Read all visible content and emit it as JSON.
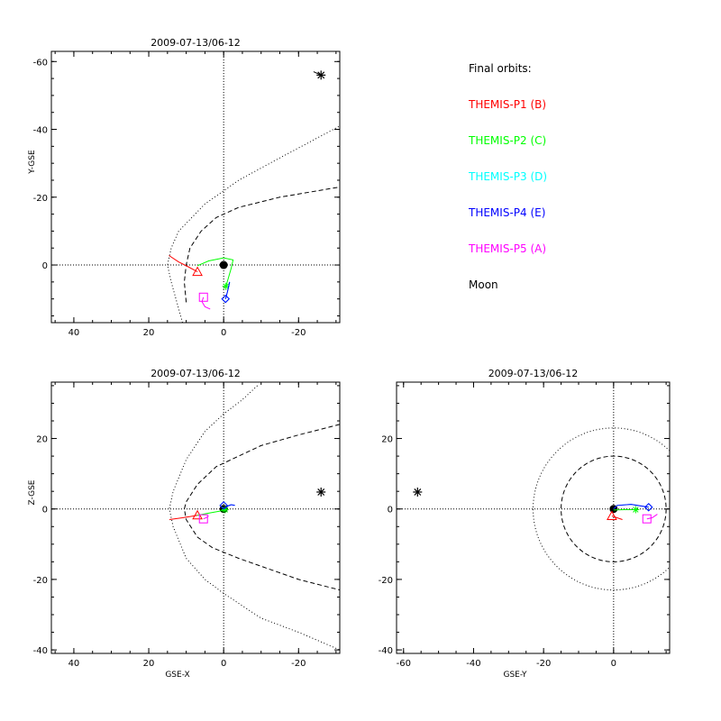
{
  "chart_data": [
    {
      "type": "line",
      "title": "2009-07-13/06-12",
      "xlabel": "",
      "ylabel": "Y-GSE",
      "xlim": [
        46,
        -31
      ],
      "ylim": [
        17,
        -63
      ],
      "xticks": [
        40,
        20,
        0,
        -20
      ],
      "yticks": [
        -60,
        -40,
        -20,
        0
      ],
      "crosshair": [
        0,
        0
      ],
      "outer_boundary": {
        "style": "dotted",
        "points": [
          [
            11,
            17
          ],
          [
            14,
            5
          ],
          [
            15,
            0
          ],
          [
            14,
            -5
          ],
          [
            12,
            -10
          ],
          [
            5,
            -18
          ],
          [
            -4,
            -25
          ],
          [
            -14,
            -31
          ],
          [
            -31,
            -41
          ]
        ]
      },
      "inner_boundary": {
        "style": "dashed",
        "points": [
          [
            10,
            11
          ],
          [
            10.5,
            5
          ],
          [
            10,
            0
          ],
          [
            9,
            -5
          ],
          [
            6,
            -10
          ],
          [
            2,
            -14
          ],
          [
            -4,
            -17
          ],
          [
            -15,
            -20
          ],
          [
            -31,
            -23
          ]
        ]
      },
      "earth": [
        0,
        0
      ],
      "moon": [
        -26,
        -56
      ],
      "moon_trail": [
        [
          -24,
          -57
        ],
        [
          -26,
          -56
        ]
      ],
      "series": [
        {
          "name": "THEMIS-P1 (B)",
          "color": "#ff0000",
          "marker": "triangle",
          "points": [
            [
              14.6,
              -2.8
            ],
            [
              12,
              -0.9
            ],
            [
              9.7,
              0.4
            ],
            [
              7,
              2
            ]
          ],
          "pos": [
            7,
            2
          ]
        },
        {
          "name": "THEMIS-P2 (C)",
          "color": "#00ff00",
          "marker": "asterisk",
          "points": [
            [
              7,
              0.2
            ],
            [
              4,
              -1.2
            ],
            [
              0,
              -2.1
            ],
            [
              -2.5,
              -1.5
            ],
            [
              -2,
              1
            ],
            [
              -1.2,
              4
            ],
            [
              -0.6,
              6.3
            ]
          ],
          "pos": [
            -0.6,
            6.3
          ]
        },
        {
          "name": "THEMIS-P3 (D)",
          "color": "#00ffff",
          "marker": "diamond",
          "points": [
            [
              -1.6,
              5
            ],
            [
              -1,
              8
            ],
            [
              -0.5,
              10
            ]
          ],
          "pos": [
            -0.5,
            10
          ]
        },
        {
          "name": "THEMIS-P4 (E)",
          "color": "#0000ff",
          "marker": "diamond",
          "points": [
            [
              -1.6,
              5
            ],
            [
              -1,
              8
            ],
            [
              -0.5,
              10
            ]
          ],
          "pos": [
            -0.5,
            10
          ]
        },
        {
          "name": "THEMIS-P5 (A)",
          "color": "#ff00ff",
          "marker": "square",
          "points": [
            [
              5.4,
              9.5
            ],
            [
              5.8,
              10.8
            ],
            [
              5,
              12.3
            ],
            [
              3.6,
              13
            ]
          ],
          "pos": [
            5.4,
            9.5
          ]
        }
      ]
    },
    {
      "type": "line",
      "title": "2009-07-13/06-12",
      "xlabel": "GSE-X",
      "ylabel": "Z-GSE",
      "xlim": [
        46,
        -31
      ],
      "ylim": [
        -41,
        36
      ],
      "xticks": [
        40,
        20,
        0,
        -20
      ],
      "yticks": [
        -40,
        -20,
        0,
        20
      ],
      "crosshair": [
        0,
        0
      ],
      "outer_boundary": {
        "style": "dotted",
        "points": [
          [
            -9,
            35
          ],
          [
            -5,
            31
          ],
          [
            0,
            27
          ],
          [
            5,
            22
          ],
          [
            10,
            14
          ],
          [
            13.5,
            5
          ],
          [
            14.5,
            0
          ],
          [
            13.5,
            -5
          ],
          [
            10,
            -14
          ],
          [
            5,
            -20
          ],
          [
            0,
            -24
          ],
          [
            -10,
            -31
          ],
          [
            -20,
            -35
          ],
          [
            -31,
            -40
          ]
        ]
      },
      "inner_boundary": {
        "style": "dashed",
        "points": [
          [
            -31,
            24
          ],
          [
            -20,
            21
          ],
          [
            -10,
            18
          ],
          [
            -4,
            15
          ],
          [
            2,
            12
          ],
          [
            7,
            7
          ],
          [
            10,
            2
          ],
          [
            10.5,
            0
          ],
          [
            10,
            -3
          ],
          [
            7,
            -8
          ],
          [
            3,
            -11
          ],
          [
            -4,
            -14
          ],
          [
            -12,
            -17
          ],
          [
            -20,
            -20
          ],
          [
            -31,
            -23
          ]
        ]
      },
      "earth": [
        0,
        0
      ],
      "moon": [
        -26,
        4.8
      ],
      "moon_trail": [],
      "series": [
        {
          "name": "THEMIS-P1 (B)",
          "color": "#ff0000",
          "marker": "triangle",
          "points": [
            [
              14.5,
              -3
            ],
            [
              11,
              -2.5
            ],
            [
              8,
              -2
            ],
            [
              7,
              -1.8
            ]
          ],
          "pos": [
            7,
            -1.8
          ]
        },
        {
          "name": "THEMIS-P2 (C)",
          "color": "#00ff00",
          "marker": "asterisk",
          "points": [
            [
              7,
              -1.8
            ],
            [
              4,
              -1.2
            ],
            [
              1,
              -0.6
            ],
            [
              -0.4,
              -0.2
            ]
          ],
          "pos": [
            -0.4,
            -0.2
          ]
        },
        {
          "name": "THEMIS-P3 (D)",
          "color": "#00ffff",
          "marker": "diamond",
          "points": [
            [
              0,
              0
            ],
            [
              -1,
              0.8
            ],
            [
              -2,
              1.2
            ],
            [
              -3,
              1
            ]
          ],
          "pos": [
            0,
            1
          ]
        },
        {
          "name": "THEMIS-P4 (E)",
          "color": "#0000ff",
          "marker": "diamond",
          "points": [
            [
              0,
              0
            ],
            [
              -1,
              0.8
            ],
            [
              -2,
              1.2
            ],
            [
              -3,
              1
            ]
          ],
          "pos": [
            0,
            1
          ]
        },
        {
          "name": "THEMIS-P5 (A)",
          "color": "#ff00ff",
          "marker": "square",
          "points": [
            [
              5.4,
              -2.8
            ],
            [
              4.5,
              -2.4
            ],
            [
              4,
              -2
            ]
          ],
          "pos": [
            5.4,
            -2.8
          ]
        }
      ]
    },
    {
      "type": "line",
      "title": "2009-07-13/06-12",
      "xlabel": "GSE-Y",
      "ylabel": "",
      "xlim": [
        -62,
        16
      ],
      "ylim": [
        -41,
        36
      ],
      "xticks": [
        -60,
        -40,
        -20,
        0
      ],
      "yticks": [
        -40,
        -20,
        0,
        20
      ],
      "crosshair": [
        0,
        0
      ],
      "outer_boundary": {
        "style": "dotted",
        "circle": [
          0,
          0,
          23
        ]
      },
      "inner_boundary": {
        "style": "dashed",
        "circle": [
          0,
          0,
          15
        ]
      },
      "earth": [
        0,
        0
      ],
      "moon": [
        -56,
        4.8
      ],
      "moon_trail": [],
      "series": [
        {
          "name": "THEMIS-P1 (B)",
          "color": "#ff0000",
          "marker": "triangle",
          "points": [
            [
              -0.5,
              -2
            ],
            [
              1,
              -2.5
            ],
            [
              2.5,
              -3
            ]
          ],
          "pos": [
            -0.5,
            -2
          ]
        },
        {
          "name": "THEMIS-P2 (C)",
          "color": "#00ff00",
          "marker": "asterisk",
          "points": [
            [
              0,
              -0.3
            ],
            [
              3,
              -0.2
            ],
            [
              6.3,
              -0.2
            ]
          ],
          "pos": [
            6.3,
            -0.2
          ]
        },
        {
          "name": "THEMIS-P3 (D)",
          "color": "#00ffff",
          "marker": "diamond",
          "points": [
            [
              0,
              0
            ],
            [
              1,
              1
            ],
            [
              5,
              1.3
            ],
            [
              10,
              0.5
            ]
          ],
          "pos": [
            10,
            0.5
          ]
        },
        {
          "name": "THEMIS-P4 (E)",
          "color": "#0000ff",
          "marker": "diamond",
          "points": [
            [
              0,
              0
            ],
            [
              1,
              1
            ],
            [
              5,
              1.3
            ],
            [
              10,
              0.5
            ]
          ],
          "pos": [
            10,
            0.5
          ]
        },
        {
          "name": "THEMIS-P5 (A)",
          "color": "#ff00ff",
          "marker": "square",
          "points": [
            [
              9.5,
              -2.8
            ],
            [
              11,
              -2.5
            ],
            [
              12.5,
              -1.5
            ]
          ],
          "pos": [
            9.5,
            -2.8
          ]
        }
      ]
    }
  ],
  "legend": {
    "title": "Final orbits:",
    "items": [
      {
        "label": "THEMIS-P1 (B)",
        "color": "#ff0000"
      },
      {
        "label": "THEMIS-P2 (C)",
        "color": "#00ff00"
      },
      {
        "label": "THEMIS-P3 (D)",
        "color": "#00ffff"
      },
      {
        "label": "THEMIS-P4 (E)",
        "color": "#0000ff"
      },
      {
        "label": "THEMIS-P5 (A)",
        "color": "#ff00ff"
      },
      {
        "label": "Moon",
        "color": "#000000"
      }
    ]
  }
}
